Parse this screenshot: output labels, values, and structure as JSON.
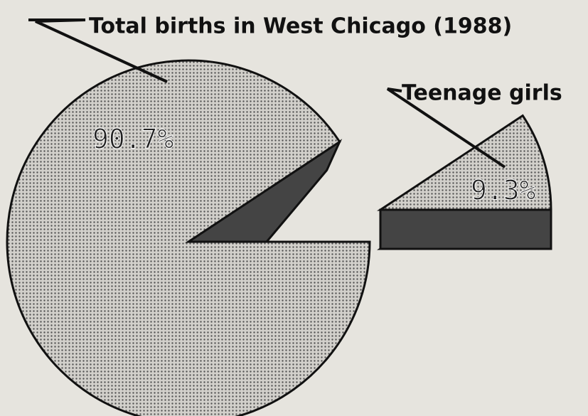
{
  "chart_data": {
    "type": "pie",
    "categories": [
      "Total births in West Chicago (1988)",
      "Teenage girls"
    ],
    "values": [
      90.7,
      9.3
    ],
    "value_labels": [
      "90.7%",
      "9.3%"
    ]
  }
}
